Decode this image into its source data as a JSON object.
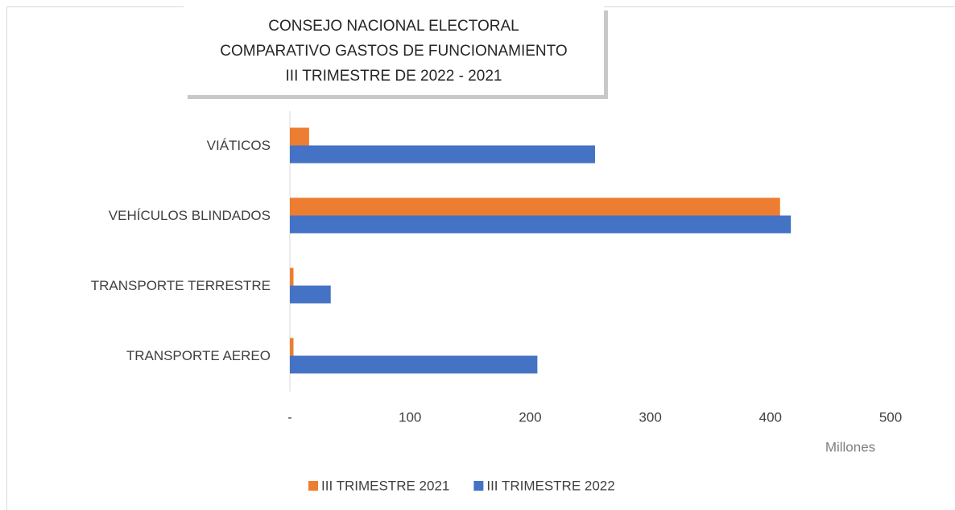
{
  "chart_data": {
    "type": "hbar",
    "title": [
      "CONSEJO NACIONAL ELECTORAL",
      "COMPARATIVO GASTOS DE FUNCIONAMIENTO",
      "III TRIMESTRE DE 2022 - 2021"
    ],
    "x_axis_label": "Millones",
    "categories": [
      "VIÁTICOS",
      "VEHÍCULOS BLINDADOS",
      "TRANSPORTE TERRESTRE",
      "TRANSPORTE AEREO"
    ],
    "series": [
      {
        "name": "III TRIMESTRE 2021",
        "color": "#ed7d31",
        "values": [
          16,
          408,
          3,
          3
        ]
      },
      {
        "name": "III TRIMESTRE 2022",
        "color": "#4472c4",
        "values": [
          254,
          417,
          34,
          206
        ]
      }
    ],
    "xlim": [
      0,
      500
    ],
    "xticks": [
      {
        "value": 0,
        "label": "-"
      },
      100,
      200,
      300,
      400,
      500
    ],
    "legend": "bottom"
  }
}
